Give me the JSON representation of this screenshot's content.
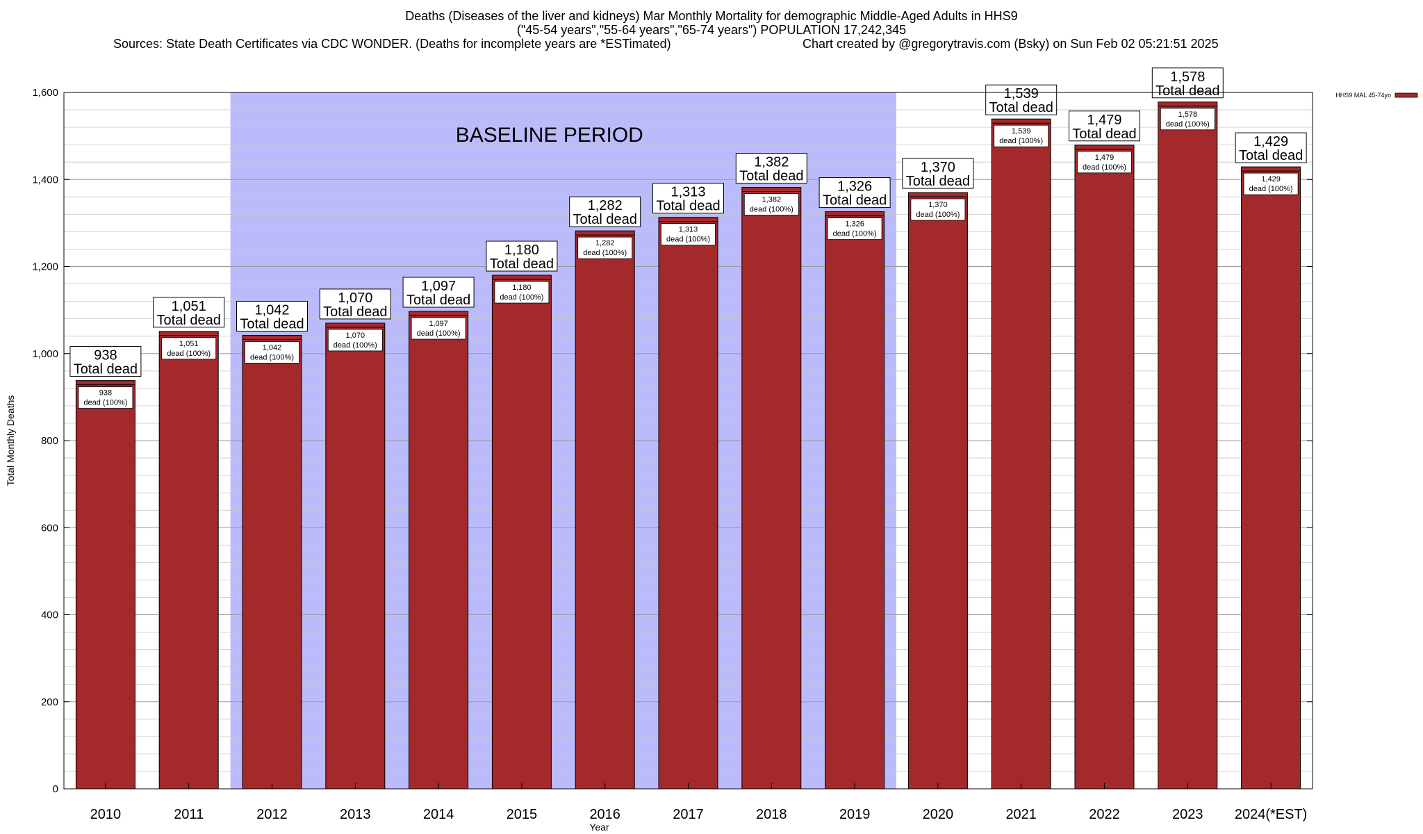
{
  "title": {
    "line1": "Deaths (Diseases of the liver and kidneys) Mar Monthly Mortality for demographic Middle-Aged Adults in HHS9",
    "line2": "(\"45-54 years\",\"55-64 years\",\"65-74 years\") POPULATION 17,242,345",
    "source": "Sources: State Death Certificates via CDC WONDER. (Deaths for incomplete years are *ESTimated)",
    "credit": "Chart created by @gregorytravis.com (Bsky) on Sun Feb 02 05:21:51 2025"
  },
  "chart_data": {
    "type": "bar",
    "xlabel": "Year",
    "ylabel": "Total Monthly Deaths",
    "ylim": [
      0,
      1600
    ],
    "yticks": [
      0,
      200,
      400,
      600,
      800,
      1000,
      1200,
      1400,
      1600
    ],
    "ytick_labels": [
      "0",
      "200",
      "400",
      "600",
      "800",
      "1,000",
      "1,200",
      "1,400",
      "1,600"
    ],
    "grid": true,
    "legend": {
      "label": "HHS9 MAL 45-74yo",
      "placement": "top-right outside"
    },
    "categories": [
      "2010",
      "2011",
      "2012",
      "2013",
      "2014",
      "2015",
      "2016",
      "2017",
      "2018",
      "2019",
      "2020",
      "2021",
      "2022",
      "2023",
      "2024(*EST)"
    ],
    "series": [
      {
        "name": "HHS9 MAL 45-74yo",
        "color": "#a3292b",
        "values": [
          938,
          1051,
          1042,
          1070,
          1097,
          1180,
          1282,
          1313,
          1382,
          1326,
          1370,
          1539,
          1479,
          1578,
          1429
        ]
      }
    ],
    "value_labels": [
      "938",
      "1,051",
      "1,042",
      "1,070",
      "1,097",
      "1,180",
      "1,282",
      "1,313",
      "1,382",
      "1,326",
      "1,370",
      "1,539",
      "1,479",
      "1,578",
      "1,429"
    ],
    "total_label_suffix": "Total dead",
    "inner_label_suffix": "dead (100%)",
    "baseline_period": {
      "label": "BASELINE PERIOD",
      "from": "2012",
      "to": "2019",
      "color": "#bbbbfb"
    }
  }
}
